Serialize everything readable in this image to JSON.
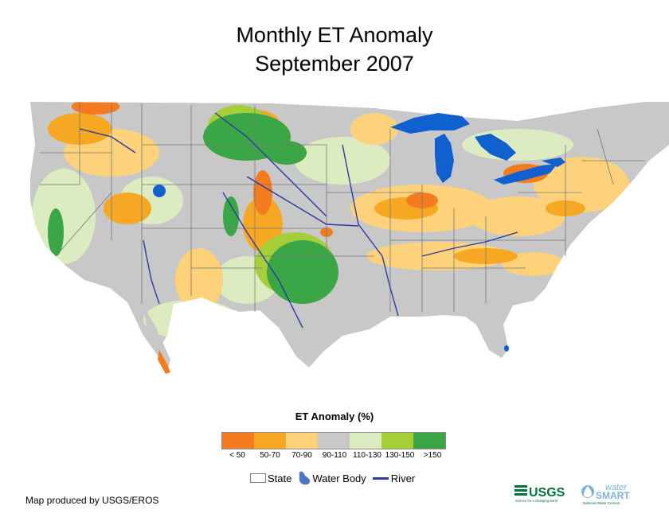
{
  "title": {
    "line1": "Monthly ET Anomaly",
    "line2": "September 2007"
  },
  "legend": {
    "title": "ET Anomaly (%)",
    "classes": [
      {
        "label": "< 50",
        "color": "#f47b20"
      },
      {
        "label": "50-70",
        "color": "#f7a823"
      },
      {
        "label": "70-90",
        "color": "#fdd27a"
      },
      {
        "label": "90-110",
        "color": "#c8c8c8"
      },
      {
        "label": "110-130",
        "color": "#dcecc0"
      },
      {
        "label": "130-150",
        "color": "#a6ce39"
      },
      {
        "label": ">150",
        "color": "#3aa645"
      }
    ],
    "keys": {
      "state": "State",
      "water_body": "Water Body",
      "river": "River"
    }
  },
  "map": {
    "water_color": "#1060d0",
    "river_color": "#2c3aa0",
    "state_border_color": "#777777",
    "land_color": "#c8c8c8"
  },
  "credit": "Map produced by USGS/EROS",
  "logos": {
    "usgs": "USGS",
    "usgs_tagline": "science for a changing world",
    "water_word": "water",
    "smart_word": "SMART",
    "water_tagline": "National Water Census"
  }
}
